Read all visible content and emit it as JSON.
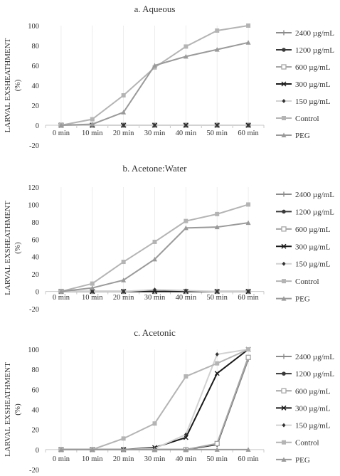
{
  "chart_data": [
    {
      "type": "line",
      "title": "a. Aqueous",
      "ylabel": [
        "LARVAL EXSHEATHMENT",
        "(%)"
      ],
      "xlabel": "",
      "x": [
        "0 min",
        "10 min",
        "20 min",
        "30 min",
        "40 min",
        "50 min",
        "60 min"
      ],
      "ylim": [
        -20,
        100
      ],
      "yticks": [
        -20,
        0,
        20,
        40,
        60,
        80,
        100
      ],
      "series": [
        {
          "name": "2400 µg/mL",
          "values": [
            0,
            0,
            0,
            0,
            0,
            0,
            0
          ]
        },
        {
          "name": "1200 µg/mL",
          "values": [
            0,
            0,
            0,
            0,
            0,
            0,
            0
          ]
        },
        {
          "name": "600 µg/mL",
          "values": [
            0,
            0,
            0,
            0,
            0,
            0,
            0
          ]
        },
        {
          "name": "300 µg/mL",
          "values": [
            0,
            0,
            0,
            0,
            0,
            0,
            0
          ]
        },
        {
          "name": "150 µg/mL",
          "values": [
            0,
            0,
            0,
            0,
            0,
            0,
            0
          ]
        },
        {
          "name": "Control",
          "values": [
            0,
            6,
            30,
            58,
            79,
            95,
            100
          ]
        },
        {
          "name": "PEG",
          "values": [
            0,
            1,
            13,
            60,
            69,
            76,
            83
          ]
        }
      ]
    },
    {
      "type": "line",
      "title": "b. Acetone:Water",
      "ylabel": [
        "LARVAL EXSHEATHMENT",
        "(%)"
      ],
      "xlabel": "",
      "x": [
        "0 min",
        "10 min",
        "20 min",
        "30 min",
        "40 min",
        "50 min",
        "60 min"
      ],
      "ylim": [
        -20,
        120
      ],
      "yticks": [
        -20,
        0,
        20,
        40,
        60,
        80,
        100,
        120
      ],
      "series": [
        {
          "name": "2400 µg/mL",
          "values": [
            0,
            0,
            0,
            0,
            0,
            0,
            0
          ]
        },
        {
          "name": "1200 µg/mL",
          "values": [
            0,
            0,
            0,
            0,
            0,
            0,
            0
          ]
        },
        {
          "name": "600 µg/mL",
          "values": [
            0,
            0,
            0,
            0,
            0,
            0,
            0
          ]
        },
        {
          "name": "300 µg/mL",
          "values": [
            0,
            0,
            0,
            0,
            0,
            0,
            0
          ]
        },
        {
          "name": "150 µg/mL",
          "values": [
            0,
            0,
            0,
            2,
            1,
            0,
            0
          ]
        },
        {
          "name": "Control",
          "values": [
            0,
            9,
            34,
            57,
            81,
            89,
            100
          ]
        },
        {
          "name": "PEG",
          "values": [
            0,
            4,
            13,
            37,
            73,
            74,
            79
          ]
        }
      ]
    },
    {
      "type": "line",
      "title": "c. Acetonic",
      "ylabel": [
        "LARVAL EXSHEATHMENT",
        "(%)"
      ],
      "xlabel": "",
      "x": [
        "0 min",
        "10 min",
        "20 min",
        "30 min",
        "40 min",
        "50 min",
        "60 min"
      ],
      "ylim": [
        -20,
        100
      ],
      "yticks": [
        -20,
        0,
        20,
        40,
        60,
        80,
        100
      ],
      "series": [
        {
          "name": "2400 µg/mL",
          "values": [
            0,
            0,
            0,
            0,
            0,
            5,
            90
          ]
        },
        {
          "name": "1200 µg/mL",
          "values": [
            0,
            0,
            0,
            0,
            0,
            5,
            92
          ]
        },
        {
          "name": "600 µg/mL",
          "values": [
            0,
            0,
            0,
            0,
            0,
            6,
            92
          ]
        },
        {
          "name": "300 µg/mL",
          "values": [
            0,
            0,
            0,
            2,
            12,
            76,
            100
          ]
        },
        {
          "name": "150 µg/mL",
          "values": [
            0,
            0,
            0,
            1,
            15,
            95,
            100
          ]
        },
        {
          "name": "Control",
          "values": [
            0,
            0,
            11,
            26,
            73,
            86,
            100
          ]
        },
        {
          "name": "PEG",
          "values": [
            0,
            0,
            0,
            0,
            0,
            0,
            0
          ]
        }
      ]
    }
  ],
  "styles": {
    "axis_color": "#c8c8c8",
    "text_color": "#333333",
    "series_colors": {
      "2400 µg/mL": "#8c8c8c",
      "1200 µg/mL": "#3a3a3a",
      "600 µg/mL": "#a6a6a6",
      "300 µg/mL": "#1a1a1a",
      "150 µg/mL": "#d2d2d2",
      "Control": "#b4b4b4",
      "PEG": "#9a9a9a"
    },
    "marker_shapes": {
      "2400 µg/mL": "plus",
      "1200 µg/mL": "circle",
      "600 µg/mL": "square-open",
      "300 µg/mL": "cross",
      "150 µg/mL": "diamond",
      "Control": "square",
      "PEG": "triangle"
    }
  }
}
